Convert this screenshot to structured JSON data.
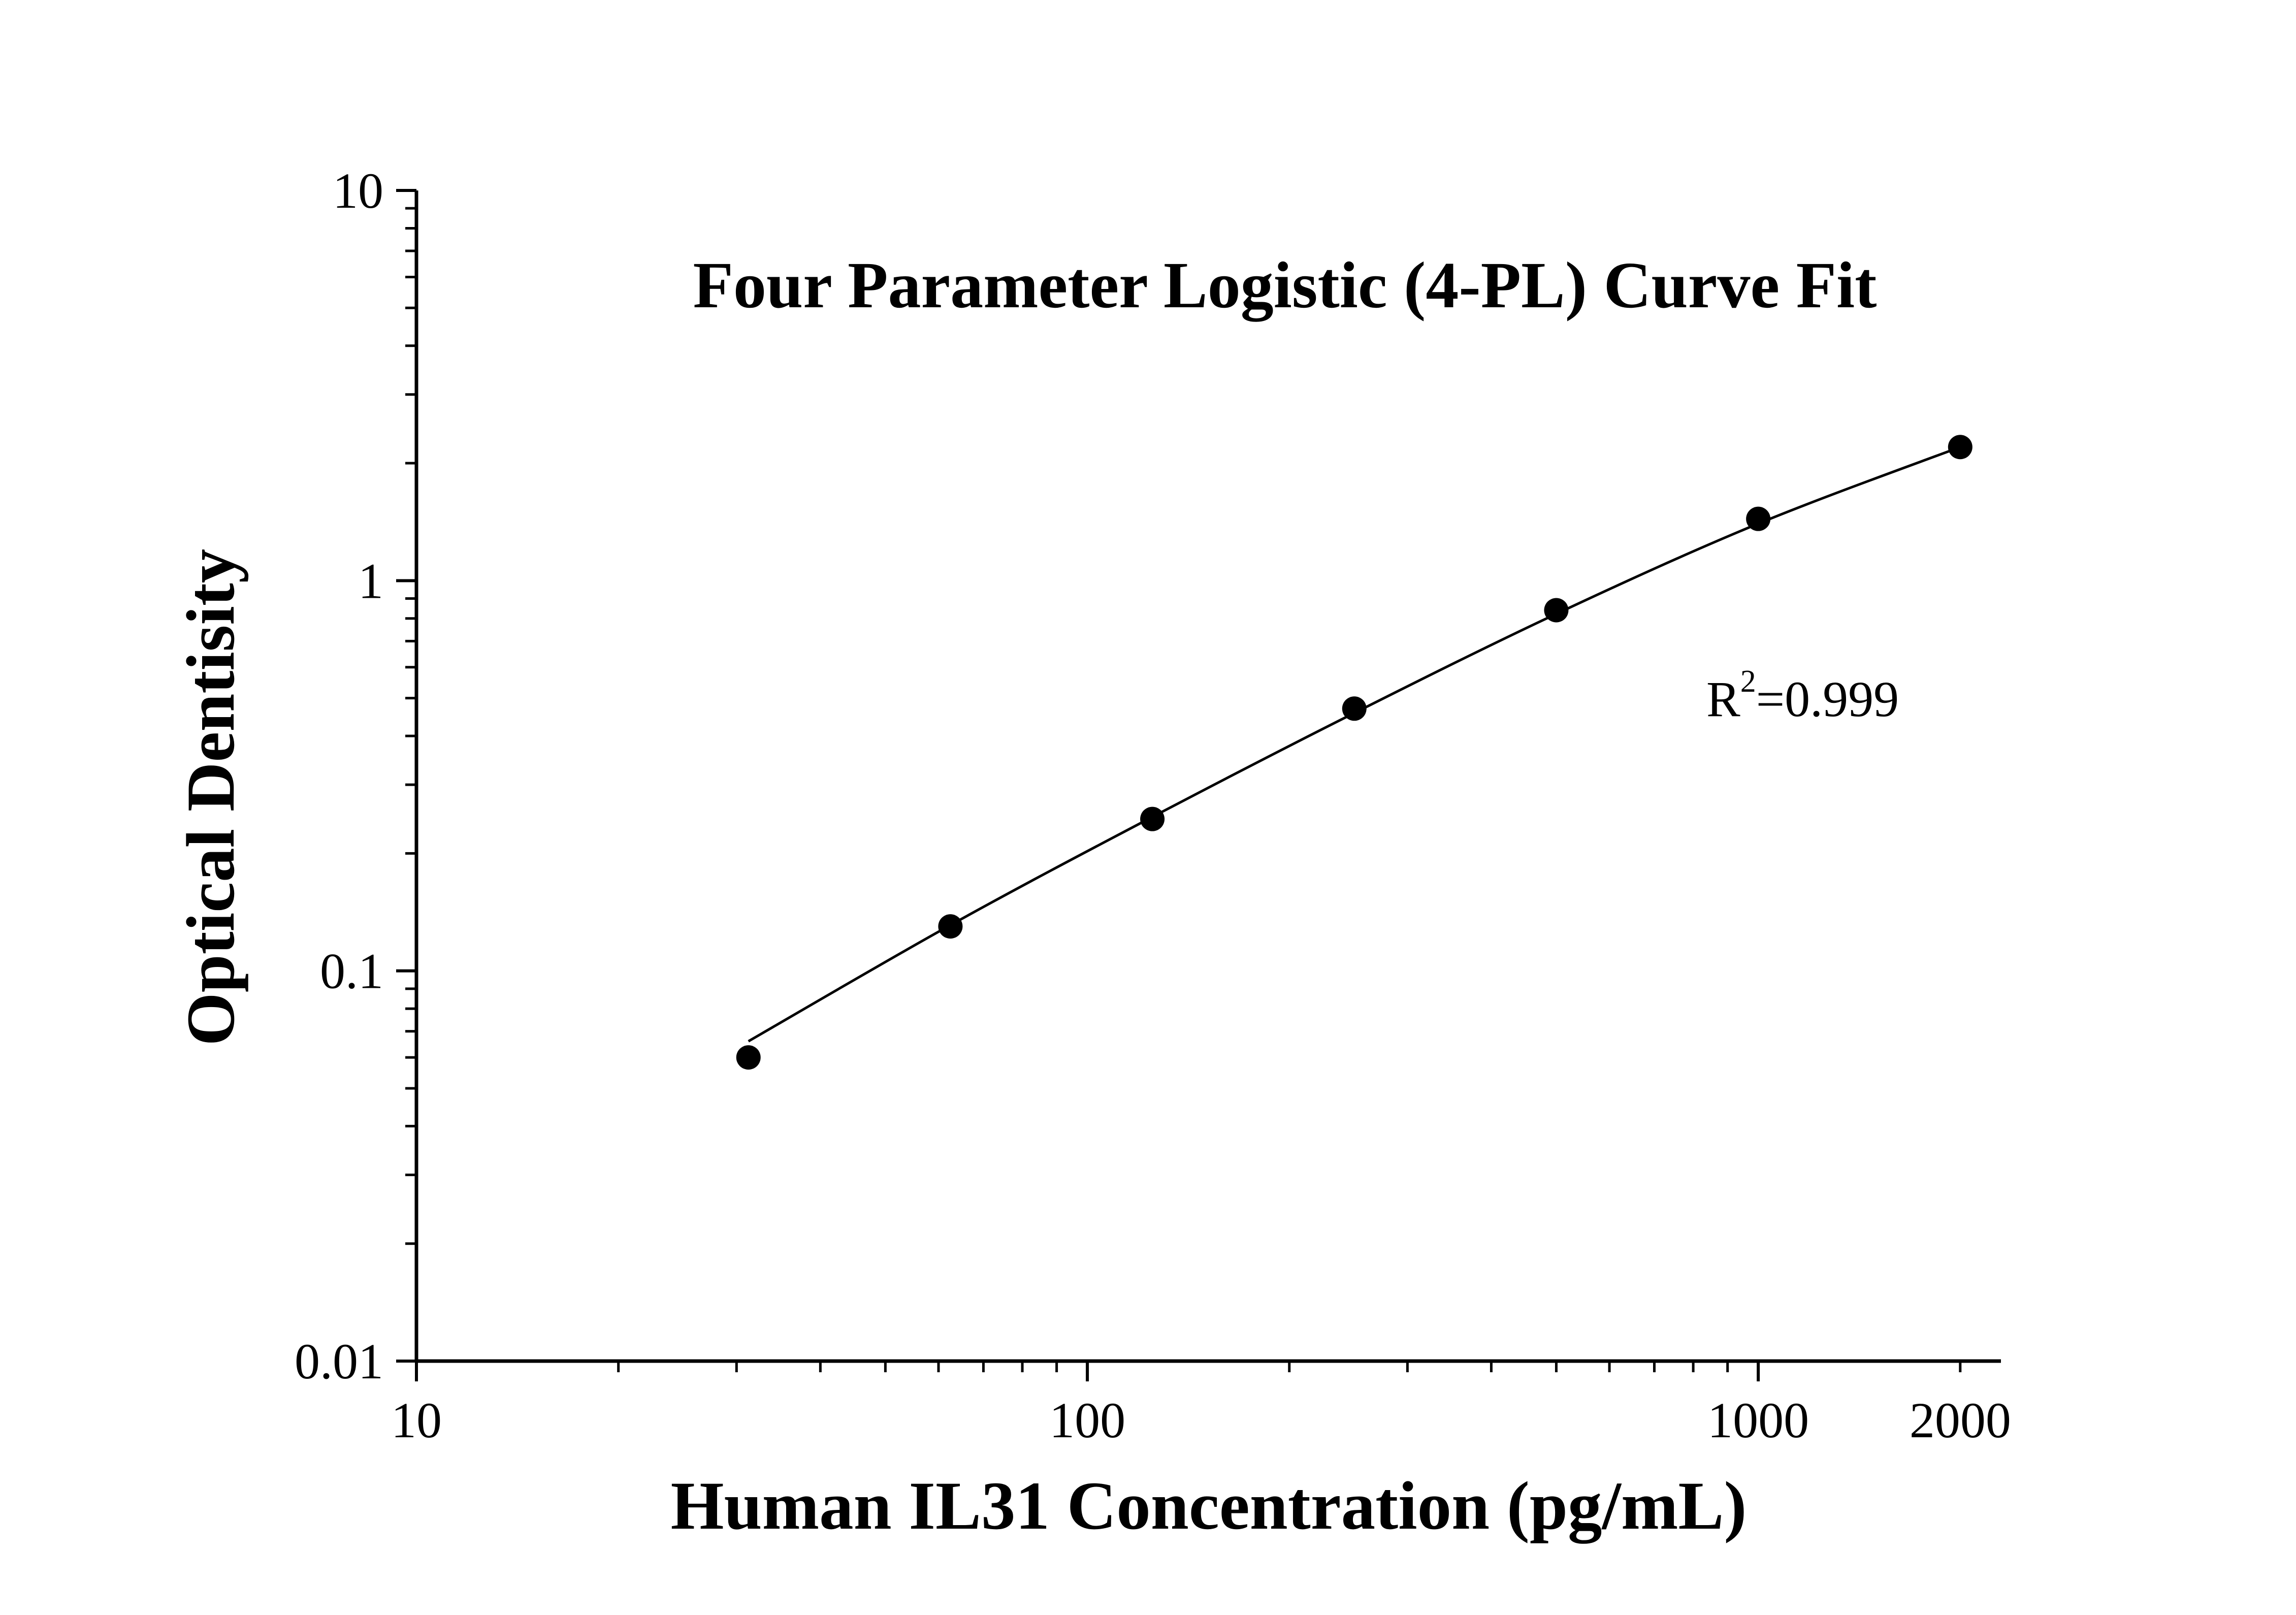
{
  "chart_data": {
    "type": "scatter",
    "title": "Four Parameter Logistic (4-PL) Curve Fit",
    "xlabel": "Human IL31 Concentration (pg/mL)",
    "ylabel": "Optical Dentisity",
    "x_scale": "log",
    "y_scale": "log",
    "xlim": [
      10,
      2300
    ],
    "ylim": [
      0.01,
      10
    ],
    "x_tick_labels": [
      "10",
      "100",
      "1000",
      "2000"
    ],
    "x_ticks": [
      10,
      100,
      1000,
      2000
    ],
    "y_tick_labels": [
      "0.01",
      "0.1",
      "1",
      "10"
    ],
    "y_ticks": [
      0.01,
      0.1,
      1,
      10
    ],
    "grid": false,
    "legend": "none",
    "series": [
      {
        "x": [
          31.25,
          62.5,
          125,
          250,
          500,
          1000,
          2000
        ],
        "y": [
          0.06,
          0.13,
          0.245,
          0.47,
          0.84,
          1.44,
          2.2
        ]
      }
    ],
    "fit_curve": {
      "x": [
        31.25,
        62.5,
        125,
        250,
        500,
        1000,
        2000
      ],
      "y": [
        0.066,
        0.131,
        0.248,
        0.458,
        0.822,
        1.4,
        2.2
      ]
    },
    "annotation": {
      "prefix": "R",
      "superscript": "2",
      "suffix": "=0.999"
    },
    "colors": {
      "marker": "#000000",
      "line": "#000000",
      "axis": "#000000"
    }
  }
}
